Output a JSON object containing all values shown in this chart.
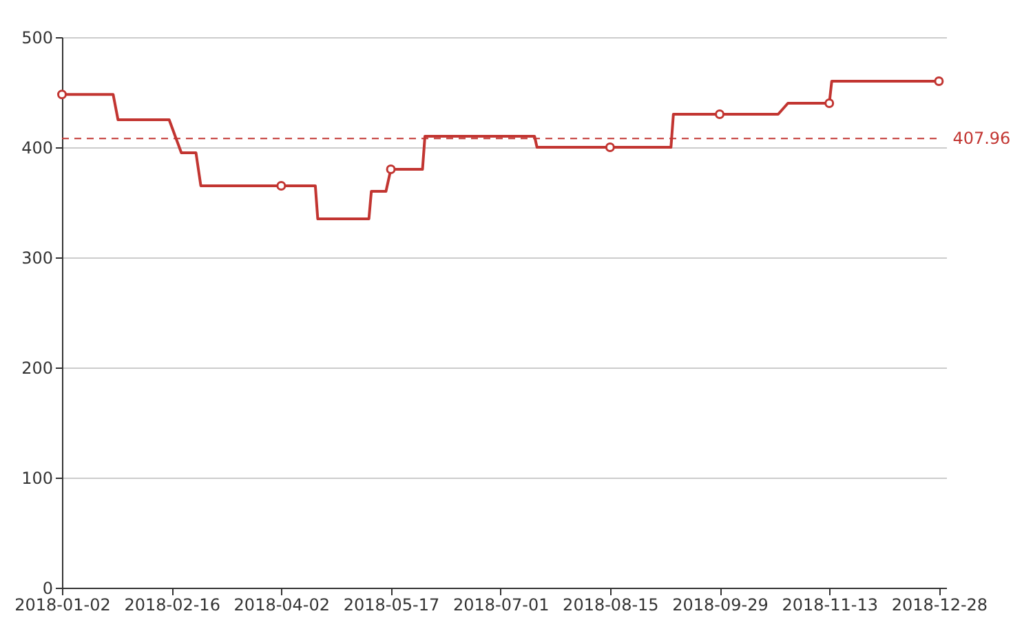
{
  "chart_data": {
    "type": "line",
    "x": [
      "2018-01-02",
      "2018-01-23",
      "2018-01-25",
      "2018-02-15",
      "2018-02-20",
      "2018-02-26",
      "2018-02-28",
      "2018-04-02",
      "2018-04-16",
      "2018-04-17",
      "2018-05-08",
      "2018-05-09",
      "2018-05-15",
      "2018-05-17",
      "2018-05-30",
      "2018-05-31",
      "2018-07-15",
      "2018-07-16",
      "2018-08-15",
      "2018-09-09",
      "2018-09-10",
      "2018-09-29",
      "2018-10-23",
      "2018-10-27",
      "2018-11-13",
      "2018-11-14",
      "2018-12-28"
    ],
    "series": [
      {
        "type": "line",
        "color": "#c23531",
        "marker": "none",
        "line_style": "solid",
        "values": [
          448,
          448,
          425,
          425,
          395,
          395,
          365,
          365,
          365,
          335,
          335,
          360,
          360,
          380,
          380,
          410,
          410,
          400,
          400,
          400,
          430,
          430,
          430,
          440,
          440,
          460,
          460
        ]
      },
      {
        "type": "scatter",
        "color": "#c23531",
        "marker": "circle",
        "x": [
          "2018-01-02",
          "2018-04-02",
          "2018-05-17",
          "2018-08-15",
          "2018-09-29",
          "2018-11-13",
          "2018-12-28"
        ],
        "values": [
          448,
          365,
          380,
          400,
          430,
          440,
          460
        ]
      }
    ],
    "xlim": [
      "2018-01-02",
      "2018-12-31"
    ],
    "xticks": [
      "2018-01-02",
      "2018-02-16",
      "2018-04-02",
      "2018-05-17",
      "2018-07-01",
      "2018-08-15",
      "2018-09-29",
      "2018-11-13",
      "2018-12-28"
    ],
    "ylim": [
      0,
      500
    ],
    "yticks": [
      0,
      100,
      200,
      300,
      400,
      500
    ],
    "grid": "y",
    "ref_lines": [
      {
        "axis": "y",
        "value": 407.96,
        "label": "407.96",
        "color": "#c23531",
        "line_style": "dashed"
      }
    ]
  }
}
